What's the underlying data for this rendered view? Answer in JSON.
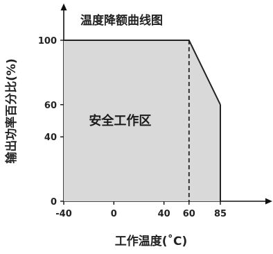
{
  "chart_data": {
    "type": "area",
    "title": "温度降额曲线图",
    "xlabel": "工作温度(˚C)",
    "ylabel": "输出功率百分比(%)",
    "x_ticks": [
      "-40",
      "0",
      "40",
      "60",
      "85"
    ],
    "x_tick_values": [
      -40,
      0,
      40,
      60,
      85
    ],
    "y_ticks": [
      "0",
      "40",
      "60",
      "100"
    ],
    "y_tick_values": [
      0,
      40,
      60,
      100
    ],
    "xlim": [
      -40,
      85
    ],
    "ylim": [
      0,
      100
    ],
    "series": [
      {
        "x": [
          -40,
          60,
          85
        ],
        "y": [
          100,
          100,
          60
        ]
      }
    ],
    "reference_lines": [
      {
        "axis": "x",
        "value": 60,
        "style": "dashed"
      }
    ],
    "annotations": [
      {
        "text": "安全工作区",
        "x": 5,
        "y": 50
      }
    ],
    "grid": false,
    "colors": {
      "fill": "#d9d9d9",
      "line": "#222222",
      "axis": "#111111"
    }
  }
}
